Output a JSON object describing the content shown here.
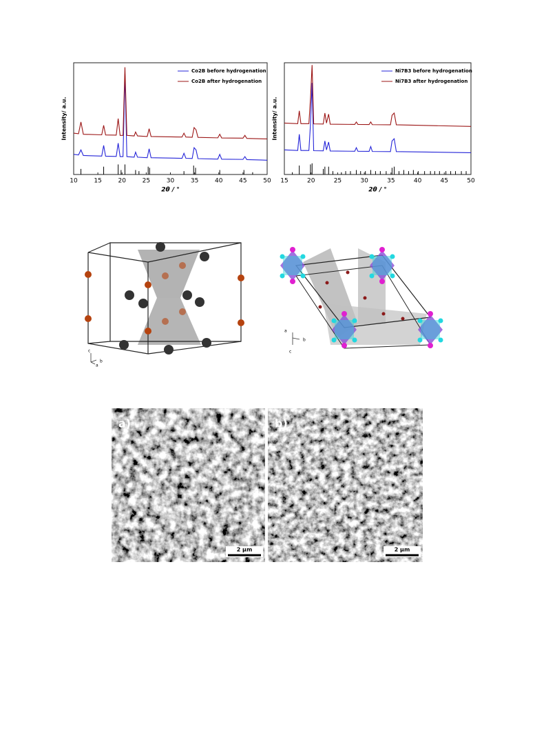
{
  "chart_data": [
    {
      "type": "line",
      "ylabel": "Intensity/ a.u.",
      "xlabel": "2θ / °",
      "xlim": [
        10,
        50
      ],
      "xticks": [
        10,
        15,
        20,
        25,
        30,
        35,
        40,
        45,
        50
      ],
      "ylim": [
        0,
        100
      ],
      "legend": "upper right",
      "x": [
        10,
        11,
        11.5,
        12,
        15.8,
        16.2,
        16.6,
        18.8,
        19.2,
        19.6,
        20.2,
        20.6,
        21,
        22.5,
        22.8,
        23.2,
        25.2,
        25.6,
        26,
        32.4,
        32.8,
        33.2,
        34.5,
        34.9,
        35.3,
        35.7,
        39.8,
        40.2,
        40.6,
        45,
        45.4,
        45.8,
        50
      ],
      "series": [
        {
          "name": "Co2B before hydrogenation",
          "color": "#2323d8",
          "values": [
            18,
            17.5,
            22,
            17,
            16.5,
            26,
            16.4,
            16.2,
            28,
            16,
            16,
            90,
            16,
            15.5,
            20,
            15.5,
            15,
            23,
            15,
            14.5,
            19,
            14.5,
            14.3,
            24,
            22,
            14.2,
            13.8,
            18,
            13.7,
            13.5,
            16,
            13.3,
            12.8
          ]
        },
        {
          "name": "Co2B after hydrogenation",
          "color": "#9b1414",
          "values": [
            37,
            36.5,
            47,
            36,
            35.5,
            44,
            35.4,
            35.2,
            50,
            35,
            35,
            96,
            35,
            34.5,
            38,
            34.5,
            34,
            41,
            34,
            33.5,
            37,
            33.5,
            33.3,
            42,
            40,
            33.2,
            32.8,
            36,
            32.7,
            32.5,
            35,
            32.3,
            31.8
          ]
        }
      ],
      "reference": {
        "color": "#000000",
        "x": [
          11.5,
          16.2,
          19.2,
          19.8,
          20.6,
          22.8,
          23.5,
          25.4,
          25.7,
          32.8,
          34.8,
          35.2,
          40.2,
          45.2,
          47
        ],
        "values": [
          5,
          7,
          9,
          4,
          9,
          4,
          3,
          7,
          6,
          3,
          8,
          6,
          4,
          4,
          2
        ]
      }
    },
    {
      "type": "line",
      "ylabel": "Intensity/ a.u.",
      "xlabel": "2θ / °",
      "xlim": [
        15,
        50
      ],
      "xticks": [
        15,
        20,
        25,
        30,
        35,
        40,
        45,
        50
      ],
      "ylim": [
        0,
        100
      ],
      "legend": "upper right",
      "x": [
        15,
        17.5,
        17.8,
        18.1,
        19.6,
        19.9,
        20.2,
        20.5,
        22.3,
        22.6,
        22.9,
        23.3,
        23.6,
        28.2,
        28.5,
        28.8,
        30.9,
        31.2,
        31.5,
        34.9,
        35.2,
        35.6,
        36,
        50
      ],
      "series": [
        {
          "name": "Ni7B3 before hydrogenation",
          "color": "#2323d8",
          "values": [
            22,
            21.5,
            36,
            21.5,
            21.5,
            45,
            82,
            21.3,
            21.2,
            30,
            22,
            29,
            21,
            20.8,
            24,
            20.8,
            20.7,
            25,
            20.6,
            20.5,
            30,
            32,
            20.5,
            19.5
          ]
        },
        {
          "name": "Ni7B3 after hydrogenation",
          "color": "#9b1414",
          "values": [
            46,
            45.5,
            57,
            45.5,
            45.5,
            68,
            98,
            45.3,
            45.2,
            55,
            46,
            54,
            45,
            44.8,
            47,
            44.8,
            44.7,
            47,
            44.6,
            44.5,
            53,
            55,
            44.5,
            43
          ]
        }
      ],
      "reference": {
        "color": "#000000",
        "x": [
          16.5,
          17.8,
          19.9,
          20.2,
          22.3,
          22.6,
          23.3,
          24.1,
          25.7,
          26.5,
          27.4,
          28.5,
          29.3,
          30.2,
          31.2,
          32.1,
          33,
          34.1,
          35.2,
          35.6,
          36.5,
          37.4,
          38.3,
          39.2,
          40.1,
          41.3,
          42.4,
          43.2,
          44.1,
          45.3,
          46.2,
          47.1,
          48.2,
          49.1
        ],
        "values": [
          2,
          8,
          9,
          10,
          5,
          7,
          7,
          3,
          2,
          3,
          3,
          4,
          3,
          3,
          4,
          3,
          3,
          3,
          6,
          7,
          3,
          4,
          3,
          4,
          3,
          3,
          3,
          3,
          3,
          3,
          3,
          3,
          3,
          3
        ]
      }
    }
  ],
  "structures": {
    "left_axes": [
      "c",
      "a",
      "b"
    ],
    "right_axes": [
      "a",
      "b",
      "c"
    ]
  },
  "sem": {
    "panels": [
      {
        "label": "a)",
        "scale": "2 μm"
      },
      {
        "label": "b)",
        "scale": "2 μm"
      }
    ]
  }
}
